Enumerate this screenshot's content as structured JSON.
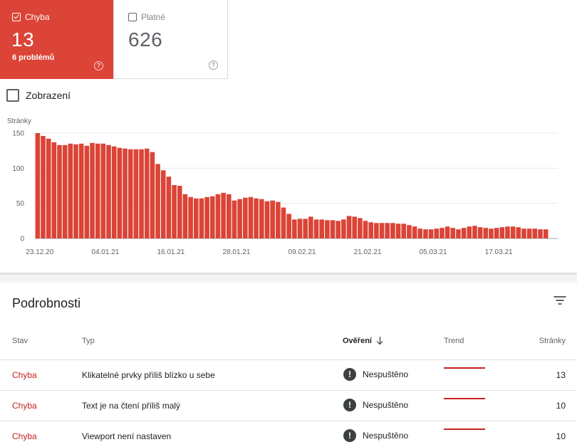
{
  "cards": {
    "error": {
      "label": "Chyba",
      "count": "13",
      "sub": "6 problémů",
      "help": "?"
    },
    "valid": {
      "label": "Platné",
      "count": "626",
      "help": "?"
    }
  },
  "impressions": {
    "label": "Zobrazení"
  },
  "chart_data": {
    "type": "bar",
    "ylabel": "Stránky",
    "ylim": [
      0,
      150
    ],
    "yticks": [
      0,
      50,
      100,
      150
    ],
    "xtick_labels": [
      "23.12.20",
      "04.01.21",
      "16.01.21",
      "28.01.21",
      "09.02.21",
      "21.02.21",
      "05.03.21",
      "17.03.21"
    ],
    "color": "#db4437",
    "grid": true,
    "values": [
      150,
      146,
      142,
      137,
      133,
      133,
      135,
      134,
      135,
      132,
      136,
      135,
      135,
      133,
      131,
      129,
      128,
      127,
      127,
      127,
      128,
      123,
      106,
      97,
      88,
      76,
      75,
      63,
      59,
      57,
      57,
      59,
      60,
      63,
      65,
      63,
      54,
      56,
      58,
      59,
      57,
      56,
      53,
      54,
      52,
      44,
      35,
      27,
      28,
      28,
      31,
      27,
      27,
      26,
      26,
      25,
      27,
      32,
      31,
      29,
      25,
      23,
      22,
      22,
      22,
      22,
      21,
      21,
      19,
      17,
      14,
      13,
      13,
      14,
      15,
      17,
      15,
      13,
      15,
      17,
      18,
      16,
      15,
      14,
      15,
      16,
      17,
      17,
      16,
      14,
      14,
      14,
      13,
      13
    ]
  },
  "details": {
    "title": "Podrobnosti",
    "columns": {
      "status": "Stav",
      "type": "Typ",
      "verification": "Ověření",
      "trend": "Trend",
      "pages": "Stránky"
    },
    "rows": [
      {
        "status": "Chyba",
        "type": "Klikatelné prvky příliš blízko u sebe",
        "verification": "Nespuštěno",
        "pages": "13"
      },
      {
        "status": "Chyba",
        "type": "Text je na čtení příliš malý",
        "verification": "Nespuštěno",
        "pages": "10"
      },
      {
        "status": "Chyba",
        "type": "Viewport není nastaven",
        "verification": "Nespuštěno",
        "pages": "10"
      }
    ]
  }
}
